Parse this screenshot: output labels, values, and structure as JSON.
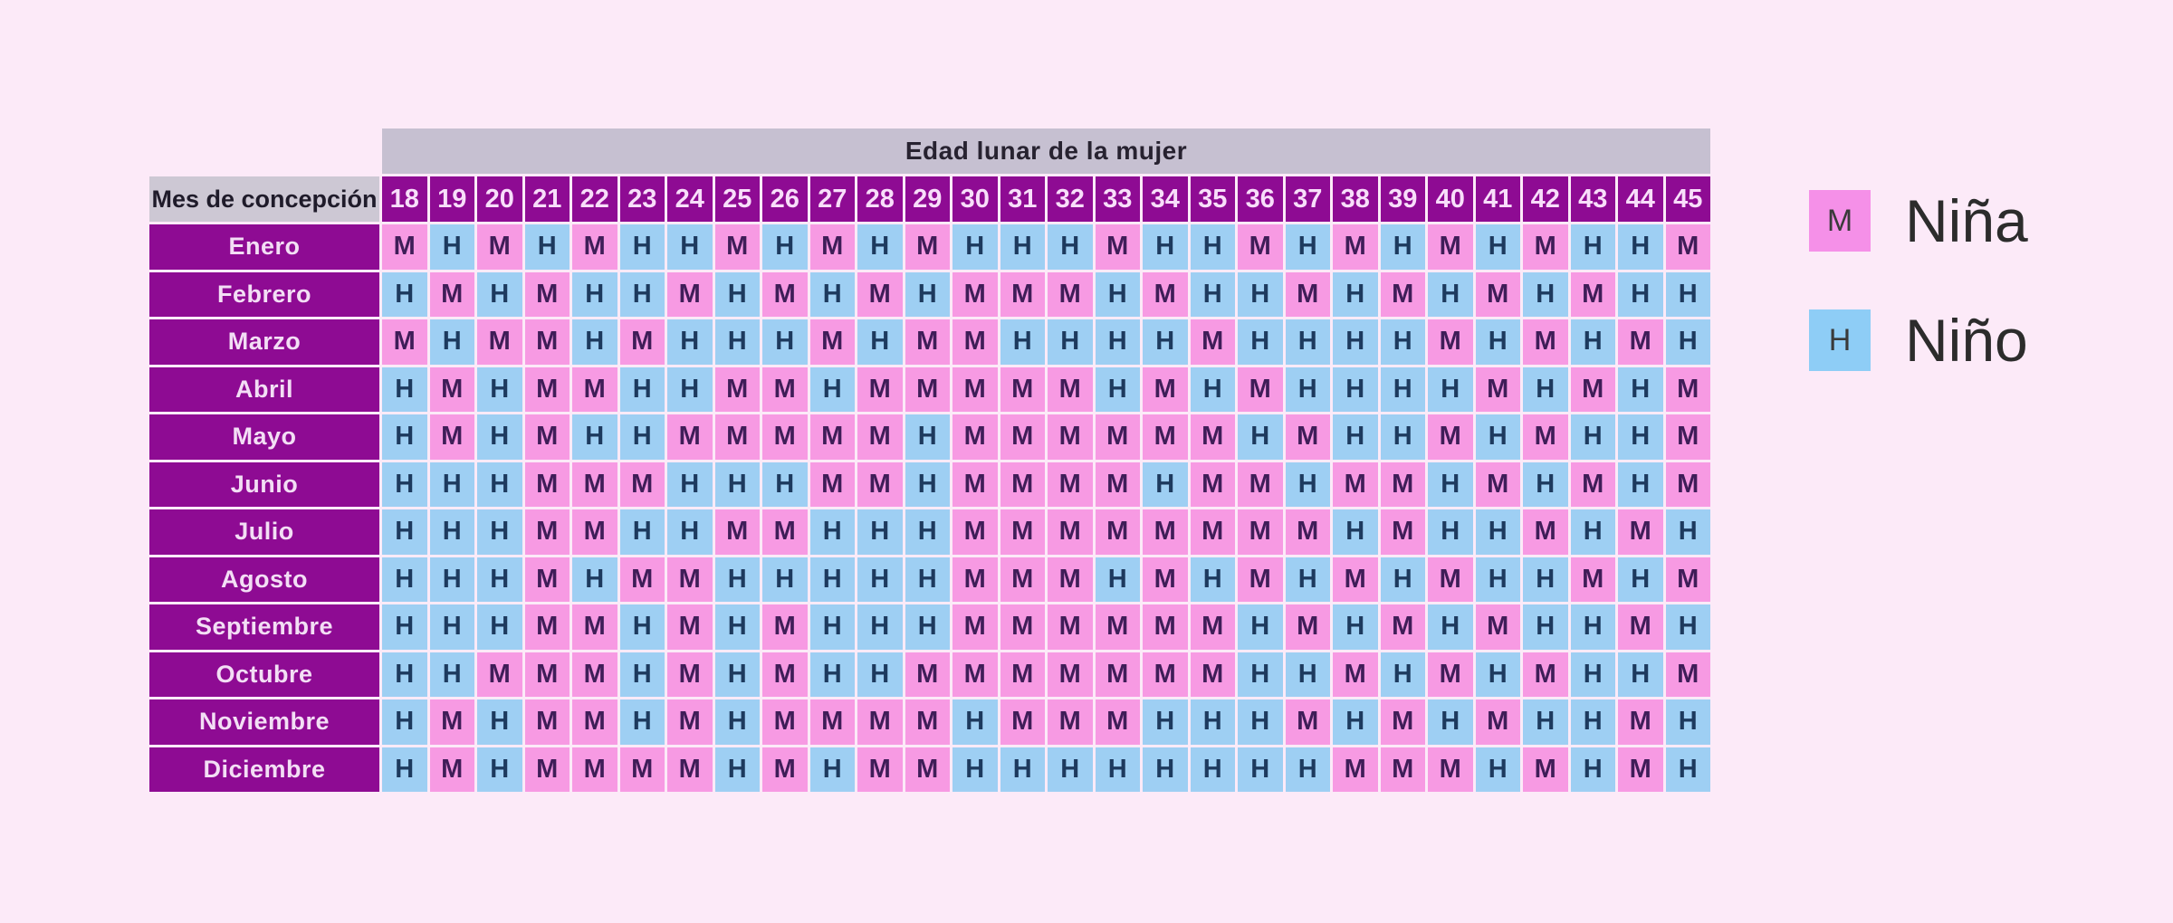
{
  "palette": {
    "background": "#fceaf8",
    "title_bar": "#c6c0d1",
    "header_purple": "#8e0b93",
    "girl_pink": "#f79ae3",
    "boy_blue": "#9ecff3",
    "legend_pink": "#f590e8",
    "legend_blue": "#8ecdf6"
  },
  "chart_data": {
    "type": "table",
    "title": "Edad lunar de la mujer",
    "row_header_label": "Mes de concepción",
    "columns": [
      18,
      19,
      20,
      21,
      22,
      23,
      24,
      25,
      26,
      27,
      28,
      29,
      30,
      31,
      32,
      33,
      34,
      35,
      36,
      37,
      38,
      39,
      40,
      41,
      42,
      43,
      44,
      45
    ],
    "rows": [
      {
        "month": "Enero",
        "values": "MHMHMHHMHMHMHHHMHHMHMHMHMHHM"
      },
      {
        "month": "Febrero",
        "values": "HMHMHHMHMHMHMMMHMHHMHMHMHMHH"
      },
      {
        "month": "Marzo",
        "values": "MHMMHMHHHMHMMHHHHMHHHHMHMHMH"
      },
      {
        "month": "Abril",
        "values": "HMHMMHHMMHMMMMMHMHMHHHHMHMHM"
      },
      {
        "month": "Mayo",
        "values": "HMHMHHMMMMMHMMMMMMHMHHMHMHHM"
      },
      {
        "month": "Junio",
        "values": "HHHMMMHHHMMHMMMMHMMHMMHMHMHM"
      },
      {
        "month": "Julio",
        "values": "HHHMMHHMMHHHMMMMMMMMHMHHMHMH"
      },
      {
        "month": "Agosto",
        "values": "HHHMHMMHHHHHMMMHMHMHMHMHHMHM"
      },
      {
        "month": "Septiembre",
        "values": "HHHMMHMHMHHHMMMMMMHMHMHMHHMH"
      },
      {
        "month": "Octubre",
        "values": "HHMMMHMHMHHMMMMMMMHHMHMHMHHM"
      },
      {
        "month": "Noviembre",
        "values": "HMHMMHMHMMMMHMMMHHHMHMHMHHMH"
      },
      {
        "month": "Diciembre",
        "values": "HMHMMMMHMHMMHHHHHHHHMMMHMHMH"
      }
    ],
    "legend": [
      {
        "symbol": "M",
        "label": "Niña",
        "color": "#f590e8"
      },
      {
        "symbol": "H",
        "label": "Niño",
        "color": "#8ecdf6"
      }
    ]
  }
}
